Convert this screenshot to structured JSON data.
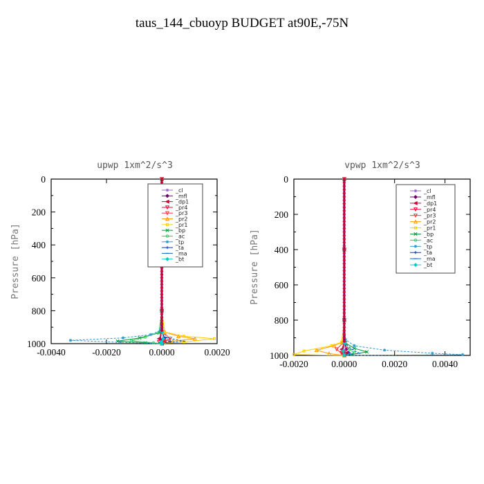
{
  "figure_title": "taus_144_cbuoyp  BUDGET at90E,-75N",
  "legend_entries": [
    {
      "label": "_cl",
      "color": "#9966cc",
      "marker": "star"
    },
    {
      "label": "_mfl",
      "color": "#660066",
      "marker": "diamond"
    },
    {
      "label": "_dp1",
      "color": "#cc0033",
      "marker": "triangle-left"
    },
    {
      "label": "_pr4",
      "color": "#ff0033",
      "marker": "triangle-down"
    },
    {
      "label": "_pr3",
      "color": "#ff3333",
      "marker": "triangle-down"
    },
    {
      "label": "_pr2",
      "color": "#ff9900",
      "marker": "triangle-up"
    },
    {
      "label": "_pr1",
      "color": "#ffcc00",
      "marker": "square"
    },
    {
      "label": "_bp",
      "color": "#009933",
      "marker": "x"
    },
    {
      "label": "_ac",
      "color": "#33cc66",
      "marker": "circle"
    },
    {
      "label": "_tp",
      "color": "#3399cc",
      "marker": "star"
    },
    {
      "label": "_ta",
      "color": "#0033cc",
      "marker": "plus"
    },
    {
      "label": "_ma",
      "color": "#0066cc",
      "marker": "dash"
    },
    {
      "label": "_bt",
      "color": "#00cccc",
      "marker": "diamond"
    }
  ],
  "chart_data": [
    {
      "type": "line",
      "title": "upwp   1xm^2/s^3",
      "ylabel": "Pressure [hPa]",
      "xlabel": "",
      "xlim": [
        -0.004,
        0.002
      ],
      "ylim": [
        1000,
        0
      ],
      "xticks": [
        -0.004,
        -0.002,
        0.0,
        0.002
      ],
      "xtick_labels": [
        "-0.0040",
        "-0.0020",
        "0.0000",
        "0.0020"
      ],
      "yticks": [
        0,
        200,
        400,
        600,
        800,
        1000
      ],
      "ytick_labels": [
        "0",
        "200",
        "400",
        "600",
        "800",
        "1000"
      ],
      "legend_location": "upper-right",
      "series": [
        {
          "name": "_cl",
          "points": [
            [
              0,
              0
            ],
            [
              0,
              400
            ],
            [
              0,
              800
            ],
            [
              2e-05,
              930
            ],
            [
              5e-05,
              970
            ],
            [
              1e-05,
              1000
            ]
          ]
        },
        {
          "name": "_mfl",
          "points": [
            [
              0,
              0
            ],
            [
              0,
              400
            ],
            [
              0,
              800
            ],
            [
              -2e-05,
              930
            ],
            [
              -4e-05,
              975
            ],
            [
              4e-05,
              1000
            ]
          ]
        },
        {
          "name": "_dp1",
          "points": [
            [
              0,
              0
            ],
            [
              0,
              400
            ],
            [
              0,
              800
            ],
            [
              0,
              930
            ],
            [
              -0.0001,
              970
            ],
            [
              0.0001,
              985
            ],
            [
              0,
              1000
            ]
          ]
        },
        {
          "name": "_pr4",
          "points": [
            [
              0,
              0
            ],
            [
              0,
              400
            ],
            [
              0,
              800
            ],
            [
              3e-05,
              930
            ],
            [
              0.0001,
              970
            ],
            [
              -0.0001,
              990
            ],
            [
              0,
              1000
            ]
          ]
        },
        {
          "name": "_pr3",
          "points": [
            [
              0,
              0
            ],
            [
              0,
              400
            ],
            [
              0,
              800
            ],
            [
              5e-05,
              930
            ],
            [
              0.0003,
              970
            ],
            [
              0.0001,
              990
            ],
            [
              0,
              1000
            ]
          ]
        },
        {
          "name": "_pr2",
          "points": [
            [
              0,
              0
            ],
            [
              0,
              400
            ],
            [
              0,
              800
            ],
            [
              0.0001,
              930
            ],
            [
              0.0006,
              955
            ],
            [
              0.0012,
              970
            ],
            [
              0.0004,
              985
            ],
            [
              0,
              1000
            ]
          ]
        },
        {
          "name": "_pr1",
          "points": [
            [
              0,
              0
            ],
            [
              0,
              400
            ],
            [
              0,
              800
            ],
            [
              0.0001,
              930
            ],
            [
              0.0008,
              955
            ],
            [
              0.0019,
              970
            ],
            [
              0.0008,
              990
            ],
            [
              0,
              1000
            ]
          ]
        },
        {
          "name": "_bp",
          "points": [
            [
              0,
              0
            ],
            [
              0,
              400
            ],
            [
              0,
              800
            ],
            [
              -0.0001,
              935
            ],
            [
              -0.0008,
              965
            ],
            [
              -0.0016,
              985
            ],
            [
              -0.0006,
              995
            ],
            [
              0,
              1000
            ]
          ]
        },
        {
          "name": "_ac",
          "points": [
            [
              0,
              0
            ],
            [
              0,
              400
            ],
            [
              0,
              800
            ],
            [
              -0.0001,
              930
            ],
            [
              -0.0006,
              960
            ],
            [
              -0.0011,
              982
            ],
            [
              -0.0003,
              995
            ],
            [
              0,
              1000
            ]
          ]
        },
        {
          "name": "_tp",
          "points": [
            [
              0,
              0
            ],
            [
              0,
              400
            ],
            [
              0,
              800
            ],
            [
              -5e-05,
              920
            ],
            [
              -0.0004,
              945
            ],
            [
              -0.0014,
              965
            ],
            [
              -0.0033,
              980
            ],
            [
              -0.0015,
              992
            ],
            [
              0,
              1000
            ]
          ]
        },
        {
          "name": "_ta",
          "points": [
            [
              0,
              0
            ],
            [
              0,
              400
            ],
            [
              0,
              800
            ],
            [
              0,
              930
            ],
            [
              0.0001,
              965
            ],
            [
              0.0003,
              985
            ],
            [
              0,
              1000
            ]
          ]
        },
        {
          "name": "_ma",
          "points": [
            [
              0,
              0
            ],
            [
              0,
              400
            ],
            [
              0,
              800
            ],
            [
              3e-05,
              930
            ],
            [
              0.0002,
              965
            ],
            [
              0.0008,
              985
            ],
            [
              0.0002,
              995
            ],
            [
              0,
              1000
            ]
          ]
        },
        {
          "name": "_bt",
          "points": [
            [
              0,
              0
            ],
            [
              0,
              400
            ],
            [
              0,
              800
            ],
            [
              2e-05,
              930
            ],
            [
              5e-05,
              970
            ],
            [
              -3e-05,
              990
            ],
            [
              0,
              1000
            ]
          ]
        }
      ]
    },
    {
      "type": "line",
      "title": "vpwp   1xm^2/s^3",
      "ylabel": "Pressure [hPa]",
      "xlabel": "",
      "xlim": [
        -0.002,
        0.005
      ],
      "ylim": [
        1000,
        0
      ],
      "xticks": [
        -0.002,
        0.0,
        0.002,
        0.004
      ],
      "xtick_labels": [
        "-0.0020",
        "0.0000",
        "0.0020",
        "0.0040"
      ],
      "yticks": [
        0,
        200,
        400,
        600,
        800,
        1000
      ],
      "ytick_labels": [
        "0",
        "200",
        "400",
        "600",
        "800",
        "1000"
      ],
      "legend_location": "upper-right",
      "series": [
        {
          "name": "_cl",
          "points": [
            [
              0,
              0
            ],
            [
              0,
              400
            ],
            [
              0,
              800
            ],
            [
              2e-05,
              920
            ],
            [
              4e-05,
              970
            ],
            [
              0,
              1000
            ]
          ]
        },
        {
          "name": "_mfl",
          "points": [
            [
              0,
              0
            ],
            [
              0,
              400
            ],
            [
              0,
              800
            ],
            [
              -2e-05,
              930
            ],
            [
              -5e-05,
              975
            ],
            [
              3e-05,
              1000
            ]
          ]
        },
        {
          "name": "_dp1",
          "points": [
            [
              0,
              0
            ],
            [
              0,
              400
            ],
            [
              0,
              800
            ],
            [
              0,
              930
            ],
            [
              -0.0001,
              965
            ],
            [
              0.0001,
              985
            ],
            [
              0,
              1000
            ]
          ]
        },
        {
          "name": "_pr4",
          "points": [
            [
              0,
              0
            ],
            [
              0,
              400
            ],
            [
              0,
              800
            ],
            [
              3e-05,
              930
            ],
            [
              0.0001,
              965
            ],
            [
              -0.0001,
              985
            ],
            [
              0,
              1000
            ]
          ]
        },
        {
          "name": "_pr3",
          "points": [
            [
              0,
              0
            ],
            [
              0,
              400
            ],
            [
              0,
              800
            ],
            [
              -5e-05,
              930
            ],
            [
              -0.0003,
              965
            ],
            [
              -0.0001,
              990
            ],
            [
              0,
              1000
            ]
          ]
        },
        {
          "name": "_pr2",
          "points": [
            [
              0,
              0
            ],
            [
              0,
              400
            ],
            [
              0,
              800
            ],
            [
              -0.0001,
              925
            ],
            [
              -0.0004,
              945
            ],
            [
              -0.0011,
              970
            ],
            [
              -0.0006,
              990
            ],
            [
              0,
              1000
            ]
          ]
        },
        {
          "name": "_pr1",
          "points": [
            [
              0,
              0
            ],
            [
              0,
              400
            ],
            [
              0,
              800
            ],
            [
              -0.0001,
              925
            ],
            [
              -0.0005,
              945
            ],
            [
              -0.0016,
              975
            ],
            [
              -0.002,
              995
            ],
            [
              0,
              1000
            ]
          ]
        },
        {
          "name": "_bp",
          "points": [
            [
              0,
              0
            ],
            [
              0,
              400
            ],
            [
              0,
              800
            ],
            [
              5e-05,
              930
            ],
            [
              0.0004,
              960
            ],
            [
              0.0009,
              980
            ],
            [
              0.0003,
              995
            ],
            [
              0,
              1000
            ]
          ]
        },
        {
          "name": "_ac",
          "points": [
            [
              0,
              0
            ],
            [
              0,
              400
            ],
            [
              0,
              800
            ],
            [
              3e-05,
              930
            ],
            [
              0.0002,
              965
            ],
            [
              0.0004,
              985
            ],
            [
              0,
              1000
            ]
          ]
        },
        {
          "name": "_tp",
          "points": [
            [
              0,
              0
            ],
            [
              0,
              400
            ],
            [
              0,
              800
            ],
            [
              5e-05,
              910
            ],
            [
              0.0004,
              945
            ],
            [
              0.0016,
              970
            ],
            [
              0.0035,
              988
            ],
            [
              0.0047,
              996
            ],
            [
              0,
              1000
            ]
          ]
        },
        {
          "name": "_ta",
          "points": [
            [
              0,
              0
            ],
            [
              0,
              400
            ],
            [
              0,
              800
            ],
            [
              0,
              930
            ],
            [
              0.0001,
              965
            ],
            [
              0.0002,
              985
            ],
            [
              0,
              1000
            ]
          ]
        },
        {
          "name": "_ma",
          "points": [
            [
              0,
              0
            ],
            [
              0,
              400
            ],
            [
              0,
              800
            ],
            [
              3e-05,
              930
            ],
            [
              0.0003,
              965
            ],
            [
              0.0006,
              988
            ],
            [
              0,
              1000
            ]
          ]
        },
        {
          "name": "_bt",
          "points": [
            [
              0,
              0
            ],
            [
              0,
              400
            ],
            [
              0,
              800
            ],
            [
              2e-05,
              930
            ],
            [
              -4e-05,
              975
            ],
            [
              0,
              1000
            ]
          ]
        }
      ]
    }
  ]
}
